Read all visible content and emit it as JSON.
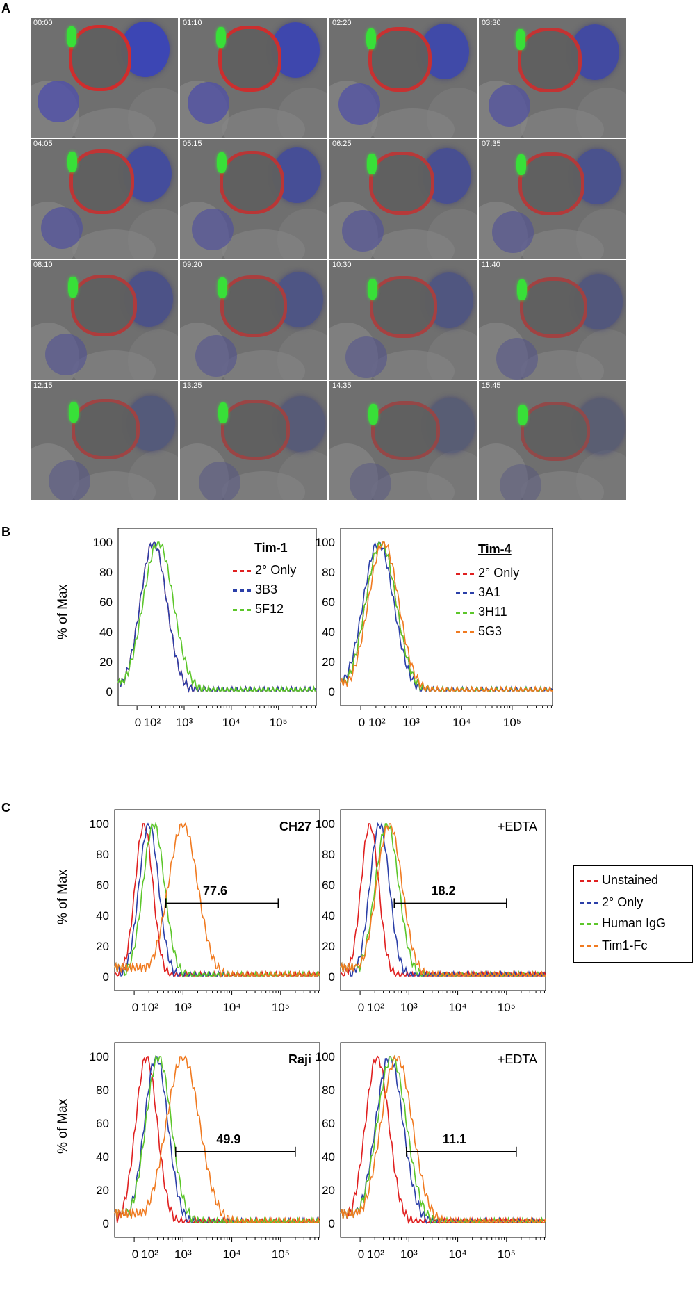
{
  "panels": {
    "a": "A",
    "b": "B",
    "c": "C"
  },
  "timestamps": [
    "00:00",
    "01:10",
    "02:20",
    "03:30",
    "04:05",
    "05:15",
    "06:25",
    "07:35",
    "08:10",
    "09:20",
    "10:30",
    "11:40",
    "12:15",
    "13:25",
    "14:35",
    "15:45"
  ],
  "ylabel": "% of Max",
  "yticks": [
    "100",
    "80",
    "60",
    "40",
    "20",
    "0"
  ],
  "xticks": [
    "0",
    "10²",
    "10³",
    "10⁴",
    "10⁵"
  ],
  "panel_b": {
    "left": {
      "title": "Tim-1",
      "legend": [
        "2° Only",
        "3B3",
        "5F12"
      ],
      "colors": [
        "#e02020",
        "#2b3fa8",
        "#5cc62a"
      ]
    },
    "right": {
      "title": "Tim-4",
      "legend": [
        "2° Only",
        "3A1",
        "3H11",
        "5G3"
      ],
      "colors": [
        "#e02020",
        "#2b3fa8",
        "#5cc62a",
        "#f07a20"
      ]
    }
  },
  "panel_c": {
    "legend": [
      "Unstained",
      "2° Only",
      "Human IgG",
      "Tim1-Fc"
    ],
    "legend_colors": [
      "#e02020",
      "#2b3fa8",
      "#5cc62a",
      "#f07a20"
    ],
    "plots": [
      {
        "label": "CH27",
        "bold": true,
        "gate": "77.6"
      },
      {
        "label": "+EDTA",
        "bold": false,
        "gate": "18.2"
      },
      {
        "label": "Raji",
        "bold": true,
        "gate": "49.9"
      },
      {
        "label": "+EDTA",
        "bold": false,
        "gate": "11.1"
      }
    ]
  },
  "chart_data": [
    {
      "type": "line",
      "panel": "B-left",
      "title": "Tim-1",
      "ylabel": "% of Max",
      "ylim": [
        0,
        100
      ],
      "series": [
        {
          "name": "2° Only",
          "peak_x_log": 2.35
        },
        {
          "name": "3B3",
          "peak_x_log": 2.35
        },
        {
          "name": "5F12",
          "peak_x_log": 2.45
        }
      ]
    },
    {
      "type": "line",
      "panel": "B-right",
      "title": "Tim-4",
      "ylabel": "% of Max",
      "ylim": [
        0,
        100
      ],
      "series": [
        {
          "name": "2° Only",
          "peak_x_log": 2.4
        },
        {
          "name": "3A1",
          "peak_x_log": 2.35
        },
        {
          "name": "3H11",
          "peak_x_log": 2.4
        },
        {
          "name": "5G3",
          "peak_x_log": 2.45
        }
      ]
    },
    {
      "type": "line",
      "panel": "C-CH27",
      "label": "CH27",
      "gate_value": 77.6,
      "ylabel": "% of Max",
      "ylim": [
        0,
        100
      ],
      "series": [
        {
          "name": "Unstained",
          "peak_x_log": 2.2
        },
        {
          "name": "2° Only",
          "peak_x_log": 2.3
        },
        {
          "name": "Human IgG",
          "peak_x_log": 2.4
        },
        {
          "name": "Tim1-Fc",
          "peak_x_log": 3.0
        }
      ]
    },
    {
      "type": "line",
      "panel": "C-CH27-EDTA",
      "label": "+EDTA",
      "gate_value": 18.2,
      "ylabel": "% of Max",
      "ylim": [
        0,
        100
      ],
      "series": [
        {
          "name": "Unstained",
          "peak_x_log": 2.2
        },
        {
          "name": "2° Only",
          "peak_x_log": 2.4
        },
        {
          "name": "Human IgG",
          "peak_x_log": 2.55
        },
        {
          "name": "Tim1-Fc",
          "peak_x_log": 2.6
        }
      ]
    },
    {
      "type": "line",
      "panel": "C-Raji",
      "label": "Raji",
      "gate_value": 49.9,
      "ylabel": "% of Max",
      "ylim": [
        0,
        100
      ],
      "series": [
        {
          "name": "Unstained",
          "peak_x_log": 2.25
        },
        {
          "name": "2° Only",
          "peak_x_log": 2.45
        },
        {
          "name": "Human IgG",
          "peak_x_log": 2.5
        },
        {
          "name": "Tim1-Fc",
          "peak_x_log": 3.0
        }
      ]
    },
    {
      "type": "line",
      "panel": "C-Raji-EDTA",
      "label": "+EDTA",
      "gate_value": 11.1,
      "ylabel": "% of Max",
      "ylim": [
        0,
        100
      ],
      "series": [
        {
          "name": "Unstained",
          "peak_x_log": 2.35
        },
        {
          "name": "2° Only",
          "peak_x_log": 2.6
        },
        {
          "name": "Human IgG",
          "peak_x_log": 2.65
        },
        {
          "name": "Tim1-Fc",
          "peak_x_log": 2.75
        }
      ]
    }
  ]
}
